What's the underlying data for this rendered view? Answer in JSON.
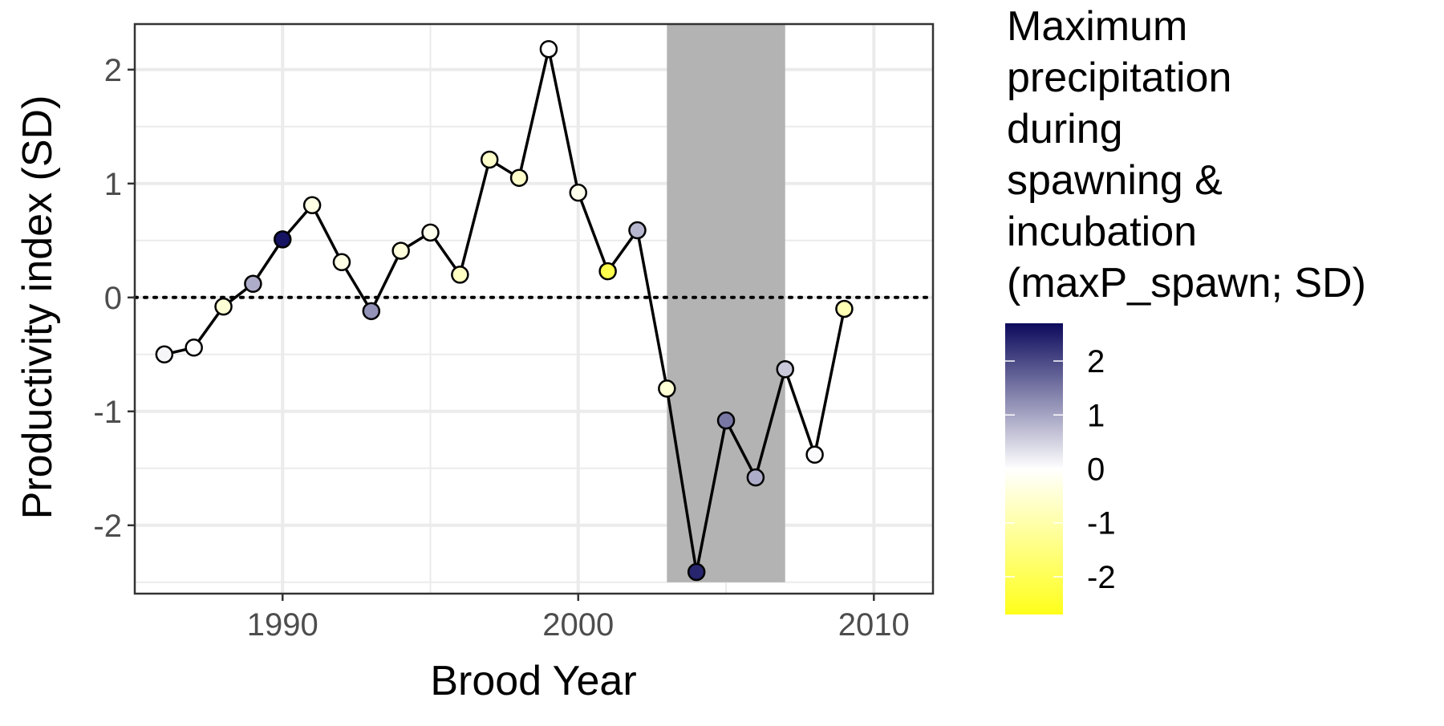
{
  "chart_data": {
    "type": "line",
    "title": "",
    "xlabel": "Brood Year",
    "ylabel": "Productivity index (SD)",
    "xlim": [
      1985,
      2012
    ],
    "ylim": [
      -2.6,
      2.4
    ],
    "x_ticks": [
      1990,
      2000,
      2010
    ],
    "x_tick_labels": [
      "1990",
      "2000",
      "2010"
    ],
    "y_ticks": [
      -2,
      -1,
      0,
      1,
      2
    ],
    "y_tick_labels": [
      "-2",
      "-1",
      "0",
      "1",
      "2"
    ],
    "grid": true,
    "reference_line": {
      "y": 0,
      "style": "dotted"
    },
    "shaded_region": {
      "x": [
        2003,
        2007
      ],
      "color": "#b3b3b3"
    },
    "points": [
      {
        "x": 1986,
        "y": -0.5,
        "color_value": 0.1
      },
      {
        "x": 1987,
        "y": -0.44,
        "color_value": 0.0
      },
      {
        "x": 1988,
        "y": -0.08,
        "color_value": -0.5
      },
      {
        "x": 1989,
        "y": 0.12,
        "color_value": 0.9
      },
      {
        "x": 1990,
        "y": 0.51,
        "color_value": 2.6
      },
      {
        "x": 1991,
        "y": 0.81,
        "color_value": -0.3
      },
      {
        "x": 1992,
        "y": 0.31,
        "color_value": -0.3
      },
      {
        "x": 1993,
        "y": -0.12,
        "color_value": 1.2
      },
      {
        "x": 1994,
        "y": 0.41,
        "color_value": -0.4
      },
      {
        "x": 1995,
        "y": 0.57,
        "color_value": -0.2
      },
      {
        "x": 1996,
        "y": 0.2,
        "color_value": -0.7
      },
      {
        "x": 1997,
        "y": 1.21,
        "color_value": -0.6
      },
      {
        "x": 1998,
        "y": 1.05,
        "color_value": -0.6
      },
      {
        "x": 1999,
        "y": 2.18,
        "color_value": 0.0
      },
      {
        "x": 2000,
        "y": 0.92,
        "color_value": -0.2
      },
      {
        "x": 2001,
        "y": 0.23,
        "color_value": -2.1
      },
      {
        "x": 2002,
        "y": 0.59,
        "color_value": 0.8
      },
      {
        "x": 2003,
        "y": -0.8,
        "color_value": -0.5
      },
      {
        "x": 2004,
        "y": -2.41,
        "color_value": 2.4
      },
      {
        "x": 2005,
        "y": -1.08,
        "color_value": 1.5
      },
      {
        "x": 2006,
        "y": -1.58,
        "color_value": 0.9
      },
      {
        "x": 2007,
        "y": -0.63,
        "color_value": 0.6
      },
      {
        "x": 2008,
        "y": -1.38,
        "color_value": 0.05
      },
      {
        "x": 2009,
        "y": -0.1,
        "color_value": -0.9
      }
    ],
    "legend": {
      "title_lines": [
        "Maximum",
        "precipitation",
        "during",
        "spawning &",
        "incubation",
        "(maxP_spawn; SD)"
      ],
      "position": "right",
      "colorbar_range": [
        -2.7,
        2.7
      ],
      "ticks": [
        2,
        1,
        0,
        -1,
        -2
      ],
      "tick_labels": [
        "2",
        "1",
        "0",
        "-1",
        "-2"
      ],
      "colors": {
        "high": "#0c0a5c",
        "mid": "#ffffff",
        "low": "#ffff1a"
      }
    }
  }
}
